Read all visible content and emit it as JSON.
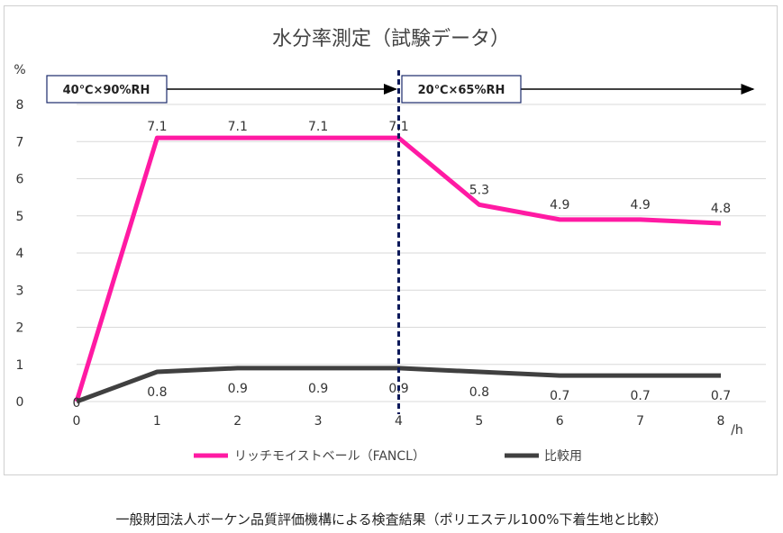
{
  "chart_data": {
    "type": "line",
    "title": "水分率測定（試験データ）",
    "ylabel": "%",
    "xlabel_unit": "/h",
    "x": [
      0,
      1,
      2,
      3,
      4,
      5,
      6,
      7,
      8
    ],
    "y_ticks": [
      0,
      1,
      2,
      3,
      4,
      5,
      6,
      7,
      8
    ],
    "ylim": [
      0,
      8
    ],
    "xlim": [
      0,
      8
    ],
    "grid": "horizontal",
    "legend_position": "bottom",
    "series": [
      {
        "name": "リッチモイストベール（FANCL）",
        "color": "#ff1aa3",
        "values": [
          0,
          7.1,
          7.1,
          7.1,
          7.1,
          5.3,
          4.9,
          4.9,
          4.8
        ],
        "labels": [
          "",
          "7.1",
          "7.1",
          "7.1",
          "7.1",
          "5.3",
          "4.9",
          "4.9",
          "4.8"
        ]
      },
      {
        "name": "比較用",
        "color": "#404040",
        "values": [
          0,
          0.8,
          0.9,
          0.9,
          0.9,
          0.8,
          0.7,
          0.7,
          0.7
        ],
        "labels": [
          "0",
          "0.8",
          "0.9",
          "0.9",
          "0.9",
          "0.8",
          "0.7",
          "0.7",
          "0.7"
        ]
      }
    ],
    "annotations": {
      "divider_x": 4,
      "divider_color": "#0d1a5a",
      "phase1": "40℃×90%RH",
      "phase2": "20℃×65%RH"
    }
  },
  "caption": "一般財団法人ボーケン品質評価機構による検査結果（ポリエステル100%下着生地と比較）"
}
